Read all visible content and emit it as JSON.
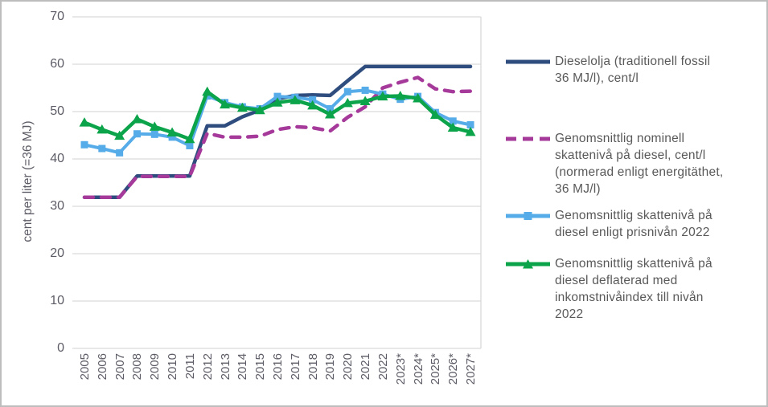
{
  "chart_data": {
    "type": "line",
    "title": "",
    "xlabel": "",
    "ylabel": "cent per liter (=36 MJ)",
    "ylim": [
      0,
      70
    ],
    "y_ticks": [
      0,
      10,
      20,
      30,
      40,
      50,
      60,
      70
    ],
    "grid": "horizontal",
    "legend_position": "right",
    "colors": {
      "grid": "#d9d9d9",
      "tick_text": "#5c5c66",
      "legend_text": "#595959",
      "frame_border": "#bdbdbd"
    },
    "categories": [
      "2005",
      "2006",
      "2007",
      "2008",
      "2009",
      "2010",
      "2011",
      "2012",
      "2013",
      "2014",
      "2015",
      "2016",
      "2017",
      "2018",
      "2019",
      "2020",
      "2021",
      "2022",
      "2023*",
      "2024*",
      "2025*",
      "2026*",
      "2027*"
    ],
    "series": [
      {
        "name": "Dieselolja (traditionell fossil 36 MJ/l), cent/l",
        "legend_lines": [
          "Dieselolja (traditionell fossil",
          "36 MJ/l), cent/l"
        ],
        "color": "#2e4d7e",
        "style": "solid",
        "marker": "none",
        "width": 4.5,
        "values": [
          31.9,
          31.9,
          31.9,
          36.4,
          36.4,
          36.4,
          36.4,
          47.0,
          47.0,
          48.9,
          50.3,
          52.7,
          53.4,
          53.5,
          53.4,
          56.5,
          59.5,
          59.5,
          59.5,
          59.5,
          59.5,
          59.5,
          59.5
        ]
      },
      {
        "name": "Genomsnittlig nominell skattenivå på diesel, cent/l (normerad enligt energitäthet, 36 MJ/l)",
        "legend_lines": [
          "Genomsnittlig nominell",
          "skattenivå på diesel, cent/l",
          "(normerad enligt energitäthet,",
          "36 MJ/l)"
        ],
        "color": "#a63a9a",
        "style": "dashed",
        "marker": "none",
        "width": 4.5,
        "values": [
          31.9,
          31.9,
          31.9,
          36.3,
          36.3,
          36.3,
          36.3,
          45.4,
          44.6,
          44.6,
          44.8,
          46.2,
          46.8,
          46.6,
          45.9,
          48.8,
          51.0,
          55.0,
          56.2,
          57.2,
          54.8,
          54.2,
          54.3
        ]
      },
      {
        "name": "Genomsnittlig skattenivå på diesel enligt prisnivån 2022",
        "legend_lines": [
          "Genomsnittlig skattenivå på",
          "diesel enligt prisnivån 2022"
        ],
        "color": "#56ace8",
        "style": "solid",
        "marker": "square",
        "width": 4,
        "values": [
          43.0,
          42.2,
          41.3,
          45.3,
          45.2,
          44.6,
          42.8,
          53.3,
          51.9,
          51.0,
          50.6,
          53.2,
          53.0,
          52.5,
          50.6,
          54.2,
          54.5,
          53.7,
          52.6,
          53.2,
          49.8,
          48.0,
          47.2
        ]
      },
      {
        "name": "Genomsnittlig skattenivå på diesel deflaterad med inkomstnivåindex till nivån 2022",
        "legend_lines": [
          "Genomsnittlig skattenivå på",
          "diesel deflaterad med",
          "inkomstnivåindex till nivån",
          "2022"
        ],
        "color": "#0ca44a",
        "style": "solid",
        "marker": "triangle",
        "width": 4.5,
        "values": [
          47.7,
          46.2,
          44.9,
          48.4,
          46.8,
          45.6,
          44.2,
          54.2,
          51.5,
          50.8,
          50.3,
          51.9,
          52.4,
          51.3,
          49.4,
          51.8,
          52.2,
          53.2,
          53.3,
          52.8,
          49.3,
          46.6,
          45.7
        ]
      }
    ]
  }
}
